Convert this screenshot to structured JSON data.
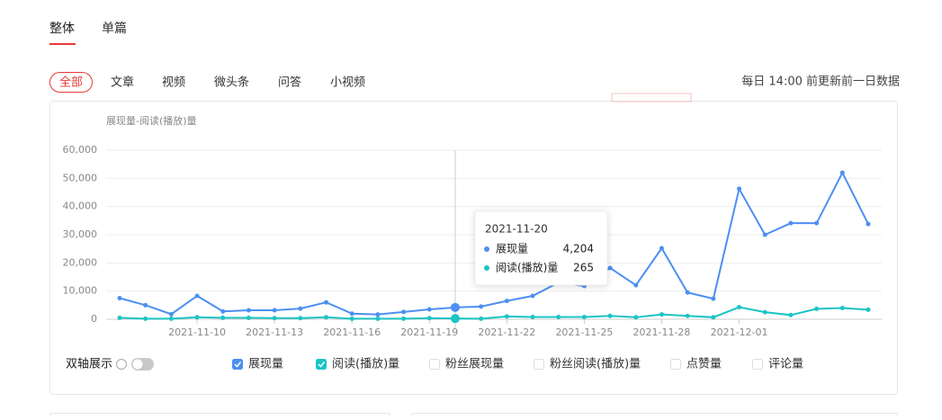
{
  "tabs": [
    {
      "label": "整体",
      "active": true
    },
    {
      "label": "单篇",
      "active": false
    }
  ],
  "filters": [
    {
      "label": "全部",
      "active": true
    },
    {
      "label": "文章",
      "active": false
    },
    {
      "label": "视频",
      "active": false
    },
    {
      "label": "微头条",
      "active": false
    },
    {
      "label": "问答",
      "active": false
    },
    {
      "label": "小视频",
      "active": false
    }
  ],
  "update_note": "每日 14:00 前更新前一日数据",
  "chart_data": {
    "type": "line",
    "y_label": "展现量-阅读(播放)量",
    "categories": [
      null,
      null,
      null,
      "2021-11-10",
      null,
      null,
      "2021-11-13",
      null,
      null,
      "2021-11-16",
      null,
      null,
      "2021-11-19",
      null,
      null,
      "2021-11-22",
      null,
      null,
      "2021-11-25",
      null,
      null,
      "2021-11-28",
      null,
      null,
      "2021-12-01",
      null,
      null,
      null,
      null,
      null
    ],
    "series": [
      {
        "name": "展现量",
        "color": "#4d8ff2",
        "values": [
          7500,
          5000,
          1800,
          8300,
          2800,
          3200,
          3200,
          3800,
          6000,
          2000,
          1700,
          2600,
          3500,
          4204,
          4500,
          6500,
          8300,
          13000,
          11800,
          18200,
          12100,
          25200,
          9500,
          7300,
          46300,
          30000,
          34100,
          34100,
          52000,
          33800
        ]
      },
      {
        "name": "阅读(播放)量",
        "color": "#1cc4c4",
        "values": [
          500,
          200,
          200,
          700,
          500,
          500,
          400,
          400,
          700,
          200,
          200,
          200,
          400,
          265,
          200,
          1000,
          800,
          800,
          800,
          1200,
          700,
          1700,
          1200,
          700,
          4300,
          2500,
          1500,
          3700,
          4000,
          3400
        ]
      }
    ],
    "ylim": [
      0,
      60000
    ],
    "yticks": [
      0,
      {
        "value": 10000,
        "label": "10,000"
      },
      {
        "value": 20000,
        "label": "20,000"
      },
      {
        "value": 30000,
        "label": "30,000"
      },
      {
        "value": 40000,
        "label": "40,000"
      },
      {
        "value": 50000,
        "label": "50,000"
      },
      {
        "value": 60000,
        "label": "60,000"
      }
    ],
    "grid": true
  },
  "tooltip": {
    "index": 13,
    "date": "2021-11-20",
    "rows": [
      {
        "value": 4204,
        "label": "4,204"
      },
      {
        "value": 265,
        "label": "265"
      }
    ]
  },
  "dual_axis": {
    "label": "双轴展示",
    "enabled": false
  },
  "metrics": [
    {
      "label": "展现量",
      "checked": true,
      "color": "#4d8ff2"
    },
    {
      "label": "阅读(播放)量",
      "checked": true,
      "color": "#1cc4c4"
    },
    {
      "label": "粉丝展现量",
      "checked": false
    },
    {
      "label": "粉丝阅读(播放)量",
      "checked": false
    },
    {
      "label": "点赞量",
      "checked": false
    },
    {
      "label": "评论量",
      "checked": false
    }
  ]
}
